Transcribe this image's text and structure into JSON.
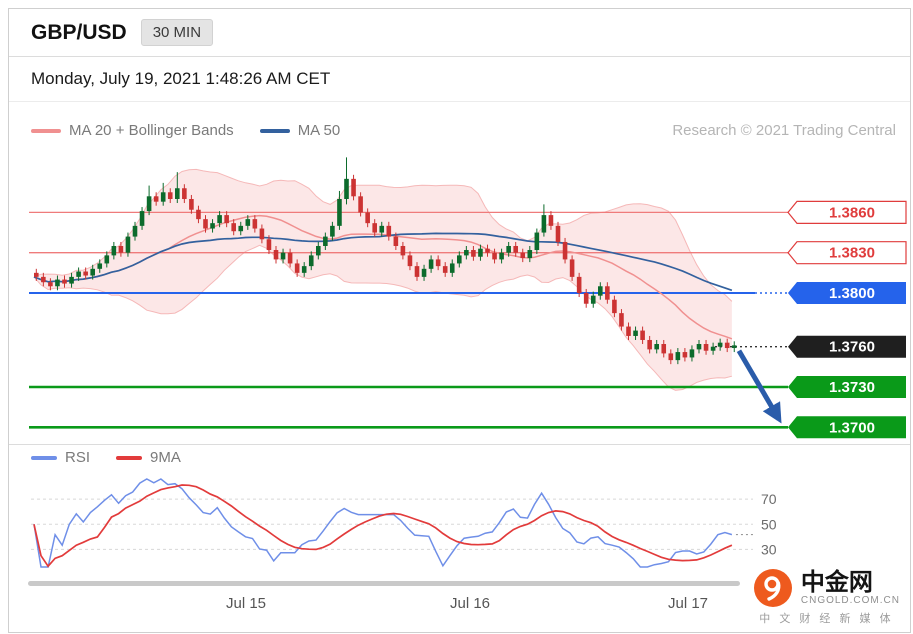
{
  "header": {
    "symbol": "GBP/USD",
    "timeframe": "30 MIN"
  },
  "datetime": "Monday, July 19, 2021 1:48:26 AM CET",
  "main_chart": {
    "legend": {
      "ma20": "MA 20 + Bollinger Bands",
      "ma50": "MA 50"
    },
    "credit": "Research © 2021 Trading Central"
  },
  "rsi_panel": {
    "legend": {
      "rsi": "RSI",
      "ma9": "9MA"
    }
  },
  "branding": {
    "name": "中金网",
    "site": "CNGOLD.COM.CN",
    "tagline": "中 文 财 经 新 媒 体",
    "accent": "#ee5a1e"
  },
  "chart_data": {
    "type": "candlestick",
    "symbol": "GBP/USD",
    "interval": "30 MIN",
    "ylim": [
      1.3692,
      1.3905
    ],
    "levels": [
      {
        "value": 1.386,
        "label": "1.3860",
        "style": "resistance-red"
      },
      {
        "value": 1.383,
        "label": "1.3830",
        "style": "resistance-red"
      },
      {
        "value": 1.38,
        "label": "1.3800",
        "style": "pivot-blue"
      },
      {
        "value": 1.376,
        "label": "1.3760",
        "style": "last-price-black"
      },
      {
        "value": 1.373,
        "label": "1.3730",
        "style": "support-green"
      },
      {
        "value": 1.37,
        "label": "1.3700",
        "style": "support-green"
      }
    ],
    "colors": {
      "up": "#0c6b2c",
      "down": "#cc3333",
      "ma20": "#f09090",
      "bollinger_fill": "rgba(244,160,160,0.25)",
      "bollinger_edge": "#f5b8b8",
      "ma50": "#33619e",
      "resistance": "#ef7b7b",
      "resistance_text": "#e03c3c",
      "pivot": "#2563eb",
      "last": "#1f1f1f",
      "support": "#0a9a19",
      "arrow": "#2a5caa",
      "rsi": "#6f8fe8",
      "rsi_ma": "#e23b3b"
    },
    "overlays": {
      "ma20_period": 20,
      "ma50_period": 50,
      "bollinger_k": 2
    },
    "forecast_arrow": {
      "from": 1.3757,
      "to": 1.3706
    },
    "x_labels": [
      {
        "text": "Jul 15",
        "x": 237
      },
      {
        "text": "Jul 16",
        "x": 461
      },
      {
        "text": "Jul 17",
        "x": 679
      }
    ],
    "rsi": {
      "period": 14,
      "ma_period": 9,
      "gridlines": [
        70,
        50,
        30
      ],
      "range": [
        16,
        86
      ]
    },
    "candles": [
      [
        1.3815,
        1.3818,
        1.3809,
        1.3812
      ],
      [
        1.3812,
        1.3815,
        1.3805,
        1.3808
      ],
      [
        1.3808,
        1.3811,
        1.3802,
        1.3805
      ],
      [
        1.3805,
        1.3813,
        1.3802,
        1.381
      ],
      [
        1.381,
        1.3813,
        1.3804,
        1.3807
      ],
      [
        1.3807,
        1.3815,
        1.3804,
        1.3812
      ],
      [
        1.3812,
        1.3819,
        1.3809,
        1.3816
      ],
      [
        1.3816,
        1.3819,
        1.381,
        1.3813
      ],
      [
        1.3813,
        1.3821,
        1.381,
        1.3818
      ],
      [
        1.3818,
        1.3825,
        1.3815,
        1.3822
      ],
      [
        1.3822,
        1.3831,
        1.3819,
        1.3828
      ],
      [
        1.3828,
        1.3838,
        1.3825,
        1.3835
      ],
      [
        1.3835,
        1.3838,
        1.3827,
        1.383
      ],
      [
        1.383,
        1.3845,
        1.3827,
        1.3842
      ],
      [
        1.3842,
        1.3853,
        1.3839,
        1.385
      ],
      [
        1.385,
        1.3864,
        1.3847,
        1.3861
      ],
      [
        1.3861,
        1.388,
        1.3858,
        1.3872
      ],
      [
        1.3872,
        1.3875,
        1.3865,
        1.3868
      ],
      [
        1.3868,
        1.3882,
        1.3865,
        1.3875
      ],
      [
        1.3875,
        1.3878,
        1.3867,
        1.387
      ],
      [
        1.387,
        1.389,
        1.3867,
        1.3878
      ],
      [
        1.3878,
        1.3881,
        1.3867,
        1.387
      ],
      [
        1.387,
        1.3873,
        1.3859,
        1.3862
      ],
      [
        1.3862,
        1.3865,
        1.3852,
        1.3855
      ],
      [
        1.3855,
        1.3858,
        1.3845,
        1.3848
      ],
      [
        1.3848,
        1.3855,
        1.3845,
        1.3852
      ],
      [
        1.3852,
        1.3861,
        1.3849,
        1.3858
      ],
      [
        1.3858,
        1.3861,
        1.3849,
        1.3852
      ],
      [
        1.3852,
        1.3855,
        1.3843,
        1.3846
      ],
      [
        1.3846,
        1.3853,
        1.3843,
        1.385
      ],
      [
        1.385,
        1.3858,
        1.3847,
        1.3855
      ],
      [
        1.3855,
        1.3858,
        1.3845,
        1.3848
      ],
      [
        1.3848,
        1.3851,
        1.3837,
        1.384
      ],
      [
        1.384,
        1.3843,
        1.3829,
        1.3832
      ],
      [
        1.3832,
        1.3835,
        1.3822,
        1.3825
      ],
      [
        1.3825,
        1.3833,
        1.3822,
        1.383
      ],
      [
        1.383,
        1.3833,
        1.3819,
        1.3822
      ],
      [
        1.3822,
        1.3825,
        1.3812,
        1.3815
      ],
      [
        1.3815,
        1.3823,
        1.3812,
        1.382
      ],
      [
        1.382,
        1.3831,
        1.3817,
        1.3828
      ],
      [
        1.3828,
        1.3838,
        1.3825,
        1.3835
      ],
      [
        1.3835,
        1.3845,
        1.3832,
        1.3842
      ],
      [
        1.3842,
        1.3853,
        1.3839,
        1.385
      ],
      [
        1.385,
        1.3876,
        1.3847,
        1.387
      ],
      [
        1.387,
        1.3901,
        1.3866,
        1.3885
      ],
      [
        1.3885,
        1.3888,
        1.3869,
        1.3872
      ],
      [
        1.3872,
        1.3875,
        1.3857,
        1.386
      ],
      [
        1.386,
        1.3863,
        1.3849,
        1.3852
      ],
      [
        1.3852,
        1.3855,
        1.3842,
        1.3845
      ],
      [
        1.3845,
        1.3853,
        1.3842,
        1.385
      ],
      [
        1.385,
        1.3853,
        1.3839,
        1.3842
      ],
      [
        1.3842,
        1.3845,
        1.3832,
        1.3835
      ],
      [
        1.3835,
        1.3838,
        1.3825,
        1.3828
      ],
      [
        1.3828,
        1.3831,
        1.3817,
        1.382
      ],
      [
        1.382,
        1.3823,
        1.3809,
        1.3812
      ],
      [
        1.3812,
        1.3821,
        1.3809,
        1.3818
      ],
      [
        1.3818,
        1.3828,
        1.3815,
        1.3825
      ],
      [
        1.3825,
        1.3828,
        1.3817,
        1.382
      ],
      [
        1.382,
        1.3823,
        1.3812,
        1.3815
      ],
      [
        1.3815,
        1.3825,
        1.3812,
        1.3822
      ],
      [
        1.3822,
        1.3831,
        1.3819,
        1.3828
      ],
      [
        1.3828,
        1.3835,
        1.3825,
        1.3832
      ],
      [
        1.3832,
        1.3835,
        1.3824,
        1.3827
      ],
      [
        1.3827,
        1.3836,
        1.3824,
        1.3833
      ],
      [
        1.3833,
        1.3836,
        1.3827,
        1.383
      ],
      [
        1.383,
        1.3833,
        1.3822,
        1.3825
      ],
      [
        1.3825,
        1.3833,
        1.3822,
        1.383
      ],
      [
        1.383,
        1.3838,
        1.3827,
        1.3835
      ],
      [
        1.3835,
        1.3838,
        1.3827,
        1.383
      ],
      [
        1.383,
        1.3833,
        1.3823,
        1.3826
      ],
      [
        1.3826,
        1.3835,
        1.3823,
        1.3832
      ],
      [
        1.3832,
        1.3848,
        1.3829,
        1.3845
      ],
      [
        1.3845,
        1.3866,
        1.3842,
        1.3858
      ],
      [
        1.3858,
        1.3861,
        1.3847,
        1.385
      ],
      [
        1.385,
        1.3853,
        1.3835,
        1.3838
      ],
      [
        1.3838,
        1.3841,
        1.3822,
        1.3825
      ],
      [
        1.3825,
        1.3828,
        1.3809,
        1.3812
      ],
      [
        1.3812,
        1.3815,
        1.3797,
        1.38
      ],
      [
        1.38,
        1.3803,
        1.3789,
        1.3792
      ],
      [
        1.3792,
        1.3801,
        1.3789,
        1.3798
      ],
      [
        1.3798,
        1.3808,
        1.3795,
        1.3805
      ],
      [
        1.3805,
        1.3808,
        1.3792,
        1.3795
      ],
      [
        1.3795,
        1.3798,
        1.3782,
        1.3785
      ],
      [
        1.3785,
        1.3788,
        1.3772,
        1.3775
      ],
      [
        1.3775,
        1.3778,
        1.3765,
        1.3768
      ],
      [
        1.3768,
        1.3775,
        1.3765,
        1.3772
      ],
      [
        1.3772,
        1.3775,
        1.3762,
        1.3765
      ],
      [
        1.3765,
        1.3768,
        1.3755,
        1.3758
      ],
      [
        1.3758,
        1.3765,
        1.3755,
        1.3762
      ],
      [
        1.3762,
        1.3765,
        1.3752,
        1.3755
      ],
      [
        1.3755,
        1.3758,
        1.3747,
        1.375
      ],
      [
        1.375,
        1.3759,
        1.3747,
        1.3756
      ],
      [
        1.3756,
        1.3759,
        1.3749,
        1.3752
      ],
      [
        1.3752,
        1.3761,
        1.3749,
        1.3758
      ],
      [
        1.3758,
        1.3765,
        1.3755,
        1.3762
      ],
      [
        1.3762,
        1.3765,
        1.3754,
        1.3757
      ],
      [
        1.3757,
        1.3763,
        1.3754,
        1.376
      ],
      [
        1.376,
        1.3766,
        1.3757,
        1.3763
      ],
      [
        1.3763,
        1.3766,
        1.3756,
        1.3759
      ],
      [
        1.3759,
        1.3764,
        1.3756,
        1.3761
      ]
    ]
  }
}
